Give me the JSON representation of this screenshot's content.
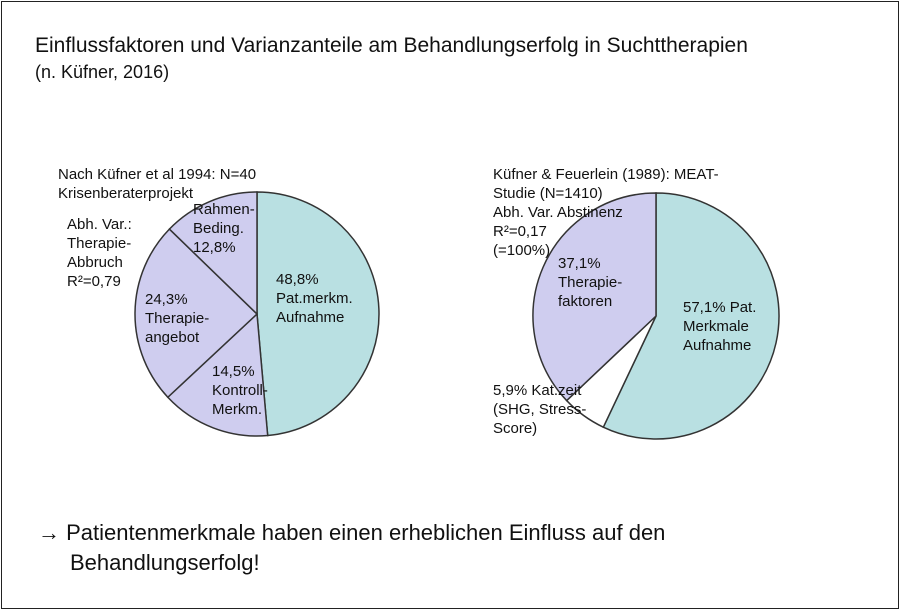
{
  "title": "Einflussfaktoren und Varianzanteile am Behandlungserfolg in Suchttherapien",
  "subtitle": "(n. Küfner, 2016)",
  "colors": {
    "patient": "#b9e0e2",
    "therapy": "#cfcdef",
    "other": "#ffffff",
    "stroke": "#333333"
  },
  "chart_data": [
    {
      "type": "pie",
      "title": "Nach Küfner et al 1994: N=40\nKrisenberaterprojekt",
      "note": "Abh. Var.:\nTherapie-\nAbbruch\nR²=0,79",
      "start": "top",
      "direction": "clockwise",
      "slices": [
        {
          "label": "48,8%\nPat.merkm.\nAufnahme",
          "value": 48.8,
          "color": "#b9e0e2"
        },
        {
          "label": "14,5%\nKontroll-\nMerkm.",
          "value": 14.5,
          "color": "#cfcdef"
        },
        {
          "label": "24,3%\nTherapie-\nangebot",
          "value": 24.3,
          "color": "#cfcdef"
        },
        {
          "label": "Rahmen-\nBeding.\n12,8%",
          "value": 12.8,
          "color": "#cfcdef"
        }
      ]
    },
    {
      "type": "pie",
      "title": "Küfner & Feuerlein (1989): MEAT-\nStudie (N=1410)\nAbh. Var. Abstinenz\nR²=0,17\n(=100%)",
      "start": "top",
      "direction": "clockwise",
      "slices": [
        {
          "label": "57,1% Pat.\nMerkmale\nAufnahme",
          "value": 57.1,
          "color": "#b9e0e2"
        },
        {
          "label": "5,9% Kat.zeit\n(SHG, Stress-\nScore)",
          "value": 5.9,
          "color": "#ffffff"
        },
        {
          "label": "37,1%\nTherapie-\nfaktoren",
          "value": 37.1,
          "color": "#cfcdef"
        }
      ]
    }
  ],
  "conclusion": {
    "arrow": "→",
    "line1": "Patientenmerkmale haben einen erheblichen Einfluss auf den",
    "line2": "Behandlungserfolg!"
  }
}
